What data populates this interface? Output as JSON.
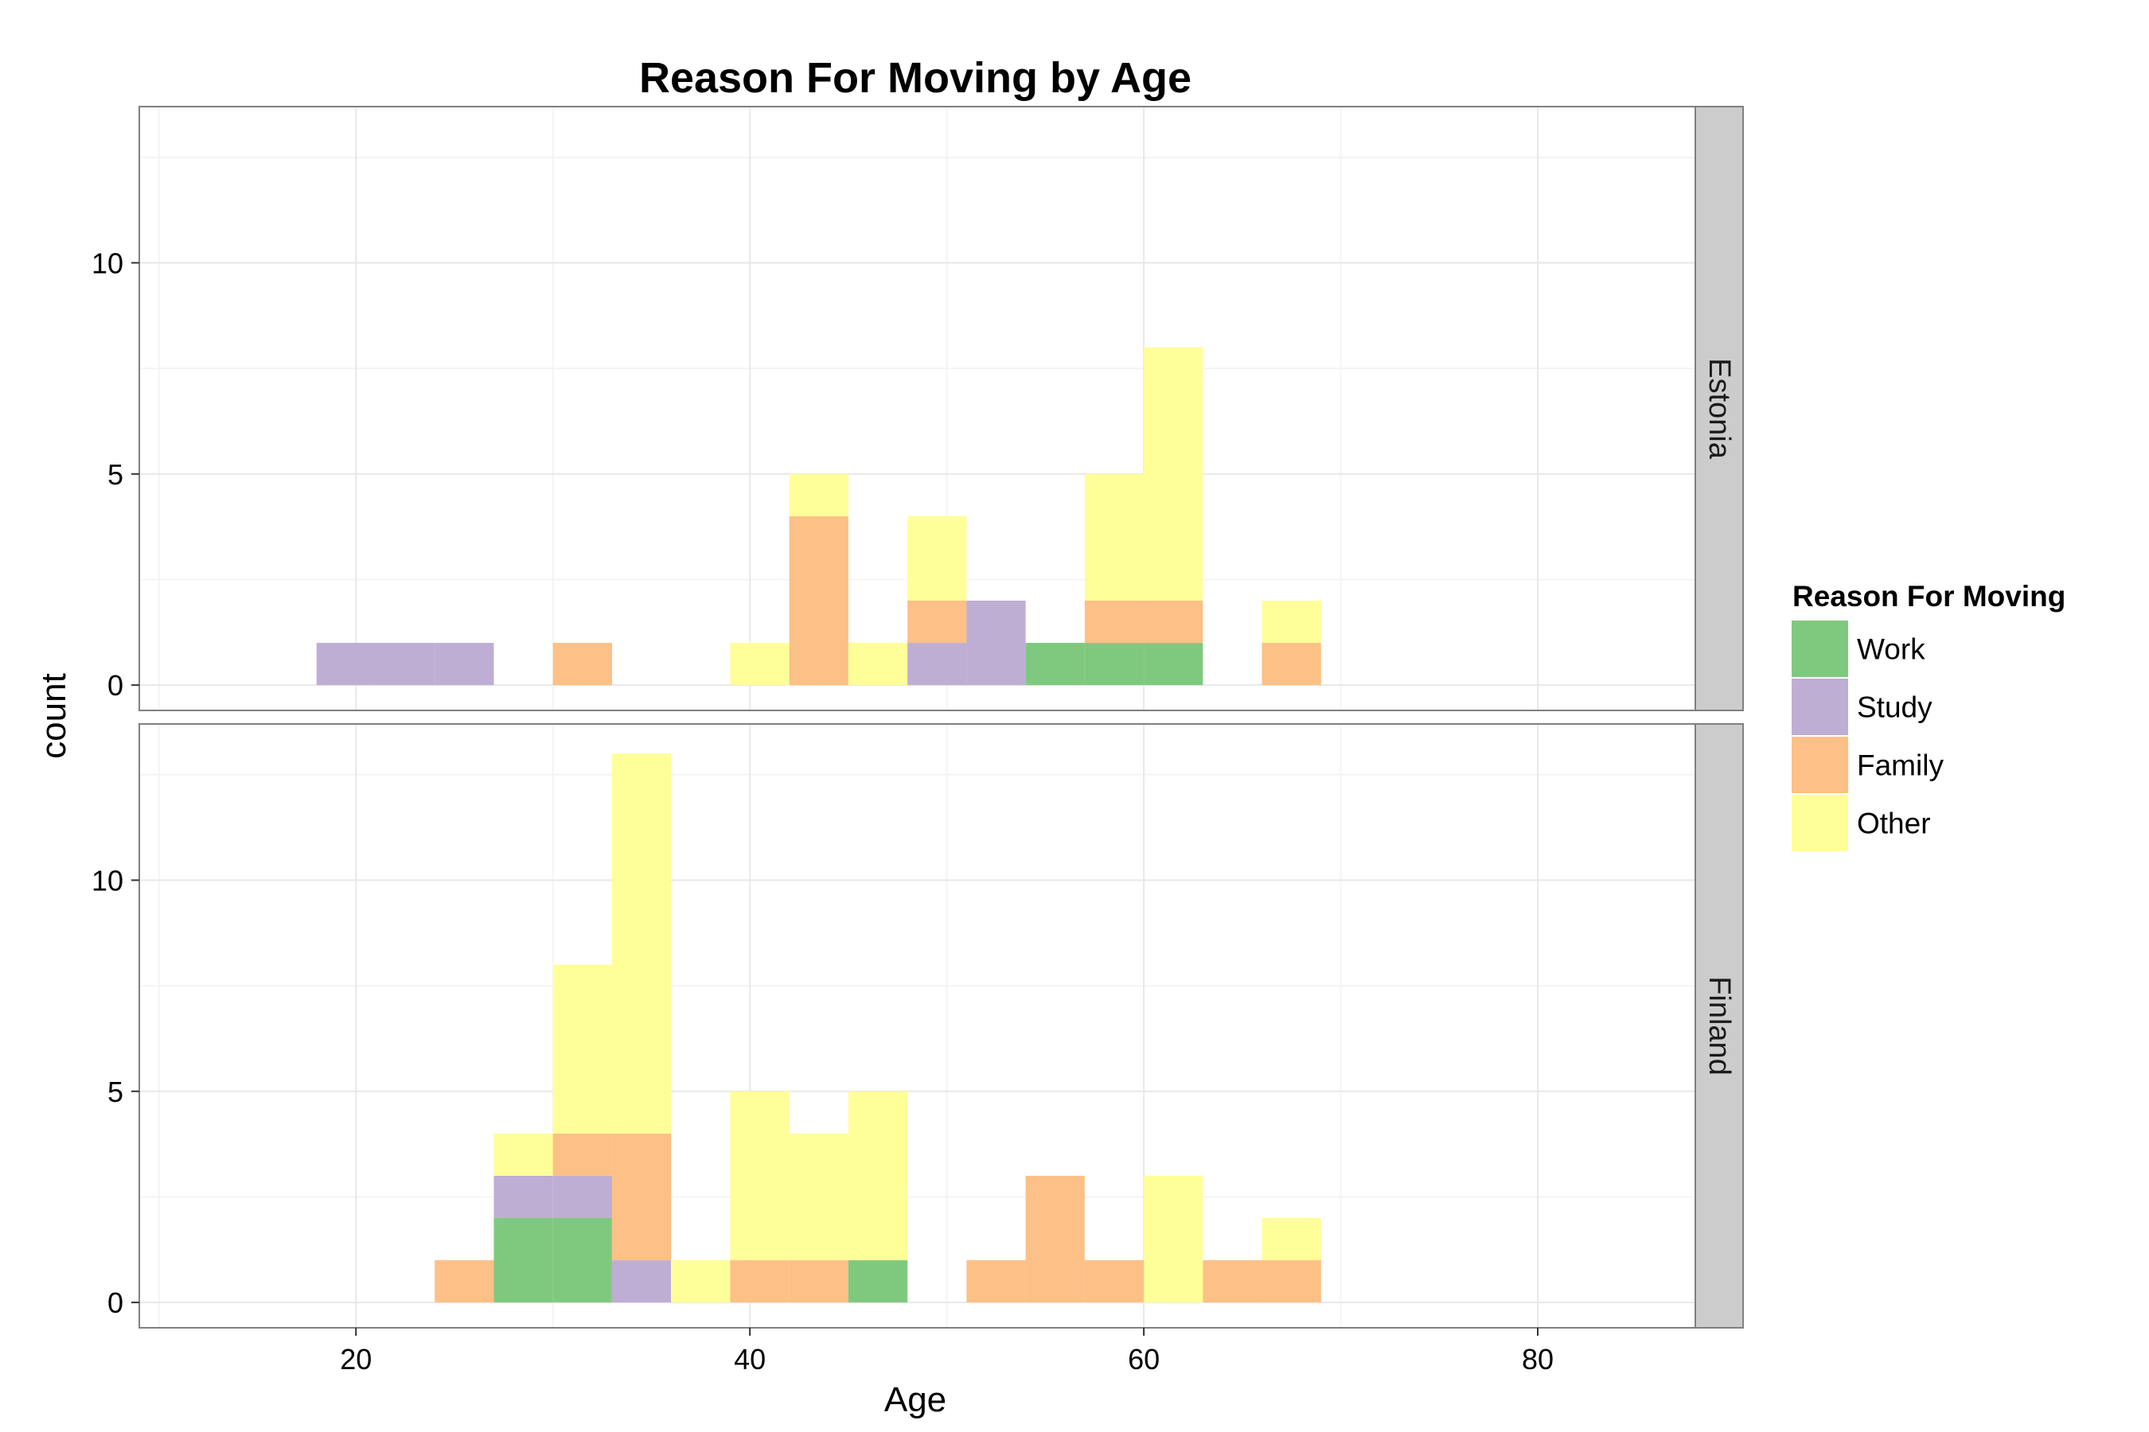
{
  "chart_data": {
    "type": "bar",
    "subtype": "stacked-histogram-faceted",
    "title": "Reason For Moving by Age",
    "xlabel": "Age",
    "ylabel": "count",
    "xlim": [
      9,
      88
    ],
    "ylim": [
      -0.6,
      13.7
    ],
    "x_ticks": [
      20,
      40,
      60,
      80
    ],
    "y_ticks": [
      0,
      5,
      10
    ],
    "bin_width": 3,
    "grid": true,
    "legend": {
      "title": "Reason For Moving",
      "position": "right",
      "entries": [
        "Work",
        "Study",
        "Family",
        "Other"
      ]
    },
    "colors": {
      "Work": "#7fc97f",
      "Study": "#beaed4",
      "Family": "#fdc086",
      "Other": "#ffff99"
    },
    "panels": [
      {
        "name": "Estonia",
        "bins": [
          {
            "start": 18,
            "end": 21,
            "Work": 0,
            "Study": 1,
            "Family": 0,
            "Other": 0
          },
          {
            "start": 21,
            "end": 24,
            "Work": 0,
            "Study": 1,
            "Family": 0,
            "Other": 0
          },
          {
            "start": 24,
            "end": 27,
            "Work": 0,
            "Study": 1,
            "Family": 0,
            "Other": 0
          },
          {
            "start": 30,
            "end": 33,
            "Work": 0,
            "Study": 0,
            "Family": 1,
            "Other": 0
          },
          {
            "start": 39,
            "end": 42,
            "Work": 0,
            "Study": 0,
            "Family": 0,
            "Other": 1
          },
          {
            "start": 42,
            "end": 45,
            "Work": 0,
            "Study": 0,
            "Family": 4,
            "Other": 1
          },
          {
            "start": 45,
            "end": 48,
            "Work": 0,
            "Study": 0,
            "Family": 0,
            "Other": 1
          },
          {
            "start": 48,
            "end": 51,
            "Work": 0,
            "Study": 1,
            "Family": 1,
            "Other": 2
          },
          {
            "start": 51,
            "end": 54,
            "Work": 0,
            "Study": 2,
            "Family": 0,
            "Other": 0
          },
          {
            "start": 54,
            "end": 57,
            "Work": 1,
            "Study": 0,
            "Family": 0,
            "Other": 0
          },
          {
            "start": 57,
            "end": 60,
            "Work": 1,
            "Study": 0,
            "Family": 1,
            "Other": 3
          },
          {
            "start": 60,
            "end": 63,
            "Work": 1,
            "Study": 0,
            "Family": 1,
            "Other": 6
          },
          {
            "start": 66,
            "end": 69,
            "Work": 0,
            "Study": 0,
            "Family": 1,
            "Other": 1
          }
        ]
      },
      {
        "name": "Finland",
        "bins": [
          {
            "start": 24,
            "end": 27,
            "Work": 0,
            "Study": 0,
            "Family": 1,
            "Other": 0
          },
          {
            "start": 27,
            "end": 30,
            "Work": 2,
            "Study": 1,
            "Family": 0,
            "Other": 1
          },
          {
            "start": 30,
            "end": 33,
            "Work": 2,
            "Study": 1,
            "Family": 1,
            "Other": 4
          },
          {
            "start": 33,
            "end": 36,
            "Work": 0,
            "Study": 1,
            "Family": 3,
            "Other": 9
          },
          {
            "start": 36,
            "end": 39,
            "Work": 0,
            "Study": 0,
            "Family": 0,
            "Other": 1
          },
          {
            "start": 39,
            "end": 42,
            "Work": 0,
            "Study": 0,
            "Family": 1,
            "Other": 4
          },
          {
            "start": 42,
            "end": 45,
            "Work": 0,
            "Study": 0,
            "Family": 1,
            "Other": 3
          },
          {
            "start": 45,
            "end": 48,
            "Work": 1,
            "Study": 0,
            "Family": 0,
            "Other": 4
          },
          {
            "start": 51,
            "end": 54,
            "Work": 0,
            "Study": 0,
            "Family": 1,
            "Other": 0
          },
          {
            "start": 54,
            "end": 57,
            "Work": 0,
            "Study": 0,
            "Family": 3,
            "Other": 0
          },
          {
            "start": 57,
            "end": 60,
            "Work": 0,
            "Study": 0,
            "Family": 1,
            "Other": 0
          },
          {
            "start": 60,
            "end": 63,
            "Work": 0,
            "Study": 0,
            "Family": 0,
            "Other": 3
          },
          {
            "start": 63,
            "end": 66,
            "Work": 0,
            "Study": 0,
            "Family": 1,
            "Other": 0
          },
          {
            "start": 66,
            "end": 69,
            "Work": 0,
            "Study": 0,
            "Family": 1,
            "Other": 1
          }
        ]
      }
    ]
  }
}
